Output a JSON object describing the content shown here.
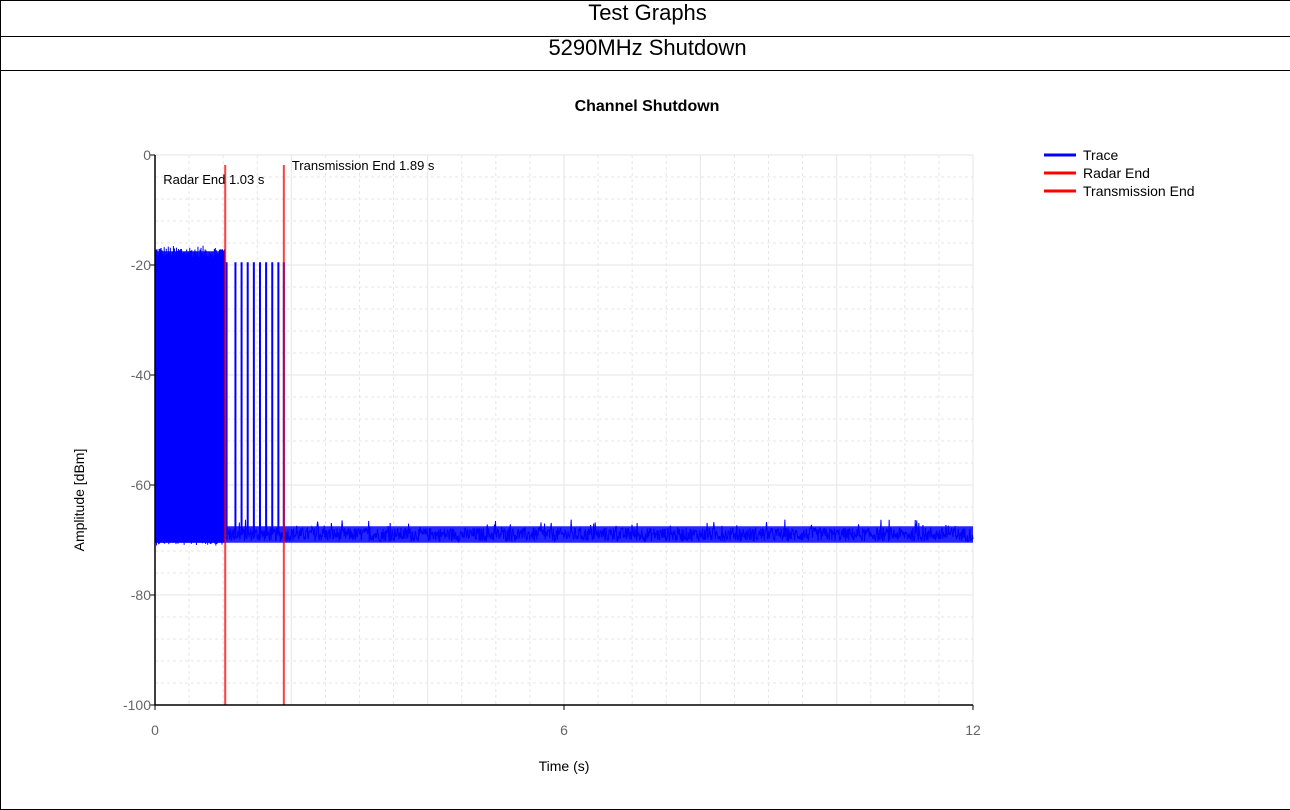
{
  "header": {
    "title": "Test Graphs",
    "subtitle": "5290MHz Shutdown"
  },
  "chart_data": {
    "type": "line",
    "title": "Channel Shutdown",
    "xlabel": "Time (s)",
    "ylabel": "Amplitude [dBm]",
    "xlim": [
      0,
      12
    ],
    "ylim": [
      -100,
      0
    ],
    "xticks": [
      "0",
      "6",
      "12"
    ],
    "yticks": [
      "0",
      "-20",
      "-40",
      "-60",
      "-80",
      "-100"
    ],
    "grid": true,
    "legend_position": "top-right",
    "series": [
      {
        "name": "Trace",
        "color": "#0000ff",
        "noise_floor_dbm": -69,
        "active_level_dbm": -17.5,
        "burst_level_dbm": -19.5,
        "active_until_s": 1.03,
        "bursts_until_s": 1.89,
        "burst_times_s": [
          0.35,
          0.5,
          0.62,
          0.78,
          0.9,
          1.05,
          1.18,
          1.27,
          1.36,
          1.45,
          1.54,
          1.63,
          1.72,
          1.81,
          1.89
        ]
      },
      {
        "name": "Radar End",
        "color": "#ff0000",
        "x": 1.03
      },
      {
        "name": "Transmission End",
        "color": "#ff0000",
        "x": 1.89
      }
    ],
    "annotations": [
      {
        "text": "Radar End 1.03 s",
        "x": 1.03,
        "y": -2
      },
      {
        "text": "Transmission End 1.89 s",
        "x": 1.89,
        "y": 0
      }
    ]
  }
}
